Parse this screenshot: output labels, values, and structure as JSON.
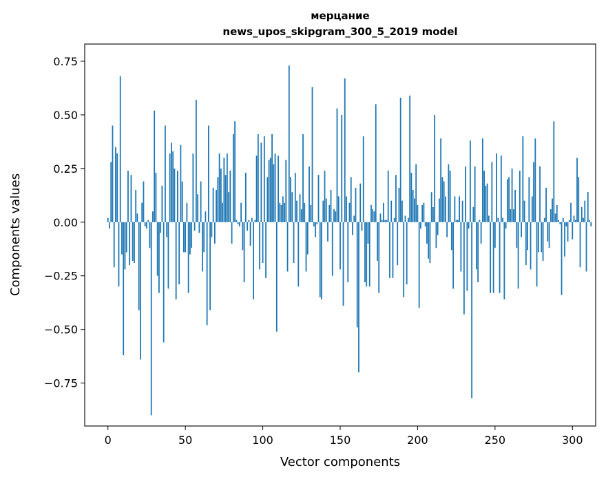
{
  "chart_data": {
    "type": "bar",
    "title": "мерцание",
    "subtitle": "news_upos_skipgram_300_5_2019 model",
    "xlabel": "Vector components",
    "ylabel": "Components values",
    "xlim": [
      -15,
      315
    ],
    "ylim": [
      -0.95,
      0.83
    ],
    "xticks": [
      0,
      50,
      100,
      150,
      200,
      250,
      300
    ],
    "xtick_labels": [
      "0",
      "50",
      "100",
      "150",
      "200",
      "250",
      "300"
    ],
    "yticks": [
      -0.75,
      -0.5,
      -0.25,
      0.0,
      0.25,
      0.5,
      0.75
    ],
    "ytick_labels": [
      "−0.75",
      "−0.50",
      "−0.25",
      "0.00",
      "0.25",
      "0.50",
      "0.75"
    ],
    "grid": false,
    "bar_color": "#1f77b4",
    "values": [
      0.02,
      -0.03,
      0.28,
      0.45,
      -0.21,
      0.35,
      0.32,
      -0.3,
      0.68,
      -0.15,
      -0.62,
      -0.22,
      -0.14,
      0.24,
      -0.2,
      0.22,
      -0.18,
      -0.19,
      0.15,
      0.04,
      -0.41,
      -0.64,
      0.09,
      0.19,
      -0.02,
      -0.03,
      0.01,
      -0.12,
      -0.9,
      0.05,
      0.52,
      0.23,
      -0.25,
      -0.33,
      -0.05,
      0.17,
      -0.56,
      0.45,
      -0.07,
      -0.31,
      0.32,
      0.37,
      0.33,
      0.25,
      -0.36,
      0.24,
      -0.29,
      0.36,
      0.19,
      -0.14,
      -0.14,
      0.09,
      -0.33,
      -0.15,
      -0.12,
      0.32,
      -0.04,
      0.57,
      0.13,
      -0.05,
      0.19,
      -0.23,
      -0.14,
      0.05,
      -0.48,
      0.45,
      -0.41,
      -0.07,
      0.16,
      -0.1,
      0.15,
      0.21,
      0.32,
      0.25,
      0.09,
      0.3,
      0.22,
      0.32,
      0.14,
      0.24,
      -0.1,
      0.41,
      0.47,
      0.01,
      -0.01,
      -0.02,
      0.09,
      -0.13,
      -0.28,
      0.23,
      -0.04,
      0.01,
      -0.11,
      0.02,
      -0.36,
      0.01,
      0.31,
      0.41,
      -0.22,
      0.37,
      -0.19,
      0.4,
      -0.26,
      0.21,
      0.29,
      0.3,
      0.41,
      0.27,
      0.32,
      -0.51,
      0.31,
      0.09,
      0.08,
      0.12,
      0.09,
      0.29,
      -0.23,
      0.73,
      0.21,
      0.14,
      -0.19,
      0.23,
      0.1,
      -0.3,
      0.13,
      0.06,
      0.41,
      0.09,
      -0.23,
      -0.15,
      0.26,
      0.08,
      0.63,
      -0.02,
      -0.07,
      -0.01,
      0.22,
      -0.35,
      -0.36,
      0.1,
      0.24,
      0.11,
      -0.09,
      0.08,
      0.15,
      -0.25,
      0.06,
      0.05,
      0.53,
      0.12,
      -0.22,
      0.5,
      -0.39,
      0.67,
      0.12,
      -0.28,
      0.09,
      0.21,
      -0.06,
      0.03,
      0.16,
      -0.49,
      -0.7,
      0.18,
      -0.04,
      0.4,
      -0.28,
      -0.3,
      -0.1,
      -0.3,
      0.08,
      0.06,
      0.05,
      0.55,
      -0.18,
      -0.33,
      0.04,
      0.01,
      0.09,
      0.01,
      0.01,
      0.24,
      -0.26,
      0.1,
      -0.26,
      0.02,
      0.22,
      -0.2,
      0.16,
      0.58,
      0.1,
      -0.35,
      0.03,
      -0.29,
      0.02,
      0.59,
      0.23,
      0.15,
      0.11,
      0.27,
      0.08,
      -0.4,
      -0.03,
      0.08,
      0.09,
      -0.02,
      -0.1,
      -0.17,
      -0.19,
      0.14,
      0.07,
      0.5,
      -0.12,
      -0.06,
      0.11,
      0.39,
      0.21,
      0.19,
      0.12,
      -0.07,
      0.27,
      0.24,
      -0.13,
      -0.31,
      0.12,
      0.01,
      0.01,
      0.12,
      -0.23,
      0.1,
      -0.43,
      0.26,
      -0.32,
      -0.03,
      0.38,
      -0.82,
      0.07,
      0.26,
      -0.22,
      -0.28,
      0.01,
      -0.1,
      0.39,
      0.24,
      0.17,
      0.18,
      0.03,
      -0.33,
      0.28,
      -0.33,
      -0.12,
      0.32,
      0.02,
      -0.33,
      0.31,
      0.02,
      -0.36,
      -0.03,
      0.2,
      0.21,
      0.06,
      0.25,
      0.06,
      0.15,
      -0.12,
      -0.31,
      0.24,
      -0.07,
      0.4,
      0.1,
      -0.2,
      -0.13,
      0.21,
      -0.22,
      0.12,
      0.28,
      0.39,
      -0.3,
      -0.14,
      0.26,
      -0.14,
      -0.18,
      0.02,
      0.16,
      -0.09,
      -0.12,
      0.06,
      0.11,
      0.47,
      0.04,
      0.08,
      0.01,
      -0.01,
      -0.34,
      0.02,
      -0.16,
      -0.02,
      -0.09,
      0.01,
      0.09,
      -0.08,
      0.03,
      0.01,
      0.3,
      0.21,
      -0.21,
      0.07,
      0.02,
      0.1,
      -0.23,
      0.14,
      0.01,
      -0.02
    ]
  }
}
